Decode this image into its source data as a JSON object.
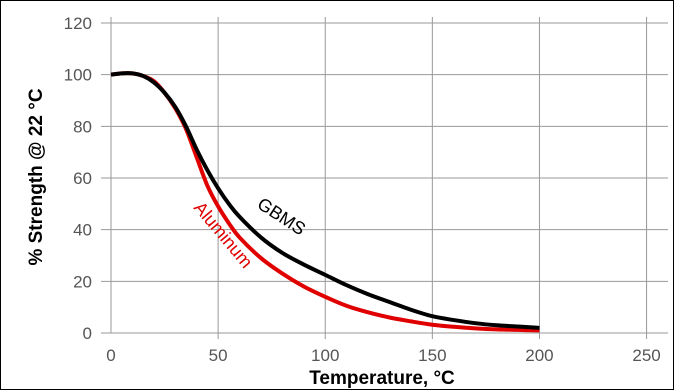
{
  "chart_data": {
    "type": "line",
    "xlabel": "Temperature, °C",
    "ylabel": "% Strength @ 22 °C",
    "xlim": [
      0,
      260
    ],
    "ylim": [
      0,
      120
    ],
    "x_ticks": [
      "0",
      "50",
      "100",
      "150",
      "200",
      "250"
    ],
    "y_ticks": [
      "0",
      "20",
      "40",
      "60",
      "80",
      "100",
      "120"
    ],
    "grid": true,
    "series": [
      {
        "name": "GBMS",
        "color": "#000000",
        "x": [
          0,
          5,
          10,
          15,
          20,
          25,
          30,
          35,
          40,
          45,
          50,
          55,
          60,
          70,
          80,
          90,
          100,
          110,
          120,
          130,
          140,
          150,
          160,
          170,
          180,
          190,
          200
        ],
        "y": [
          100,
          100.5,
          100.5,
          99.5,
          97,
          93,
          87.5,
          80,
          71,
          63,
          56,
          50,
          45,
          37,
          31,
          26.5,
          22.5,
          18.5,
          15,
          12,
          9,
          6.5,
          5,
          3.8,
          3,
          2.5,
          2
        ]
      },
      {
        "name": "Aluminum",
        "color": "#e00000",
        "x": [
          0,
          5,
          10,
          15,
          20,
          25,
          30,
          35,
          40,
          45,
          50,
          55,
          60,
          70,
          80,
          90,
          100,
          110,
          120,
          130,
          140,
          150,
          160,
          170,
          180,
          190,
          200
        ],
        "y": [
          100,
          100.5,
          100.5,
          99.5,
          97.5,
          93,
          87,
          79,
          68,
          57,
          49,
          42.5,
          37,
          29,
          23,
          18,
          14,
          10.5,
          8,
          6,
          4.5,
          3.2,
          2.4,
          1.8,
          1.4,
          1.2,
          1
        ]
      }
    ]
  }
}
